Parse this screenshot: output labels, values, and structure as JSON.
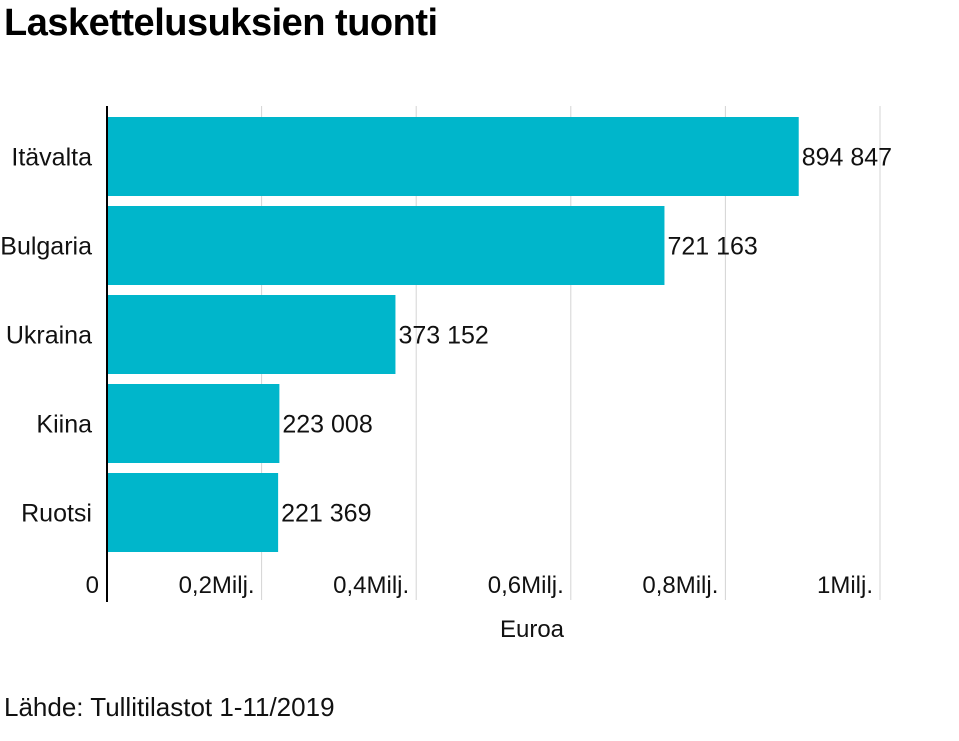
{
  "title": "Laskettelusuksien tuonti",
  "source": "Lähde: Tullitilastot 1-11/2019",
  "colors": {
    "bar": "#00b6cb",
    "grid": "#d4d4d4",
    "axis": "#000000",
    "text": "#111111"
  },
  "chart_data": {
    "type": "bar",
    "orientation": "horizontal",
    "categories": [
      "Itävalta",
      "Bulgaria",
      "Ukraina",
      "Kiina",
      "Ruotsi"
    ],
    "values": [
      894847,
      721163,
      373152,
      223008,
      221369
    ],
    "value_labels": [
      "894 847",
      "721 163",
      "373 152",
      "223 008",
      "221 369"
    ],
    "xlabel": "Euroa",
    "xlim": [
      0,
      1000000
    ],
    "xticks": [
      0,
      200000,
      400000,
      600000,
      800000,
      1000000
    ],
    "xtick_labels": [
      "0",
      "0,2Milj.",
      "0,4Milj.",
      "0,6Milj.",
      "0,8Milj.",
      "1Milj."
    ],
    "grid": true
  }
}
